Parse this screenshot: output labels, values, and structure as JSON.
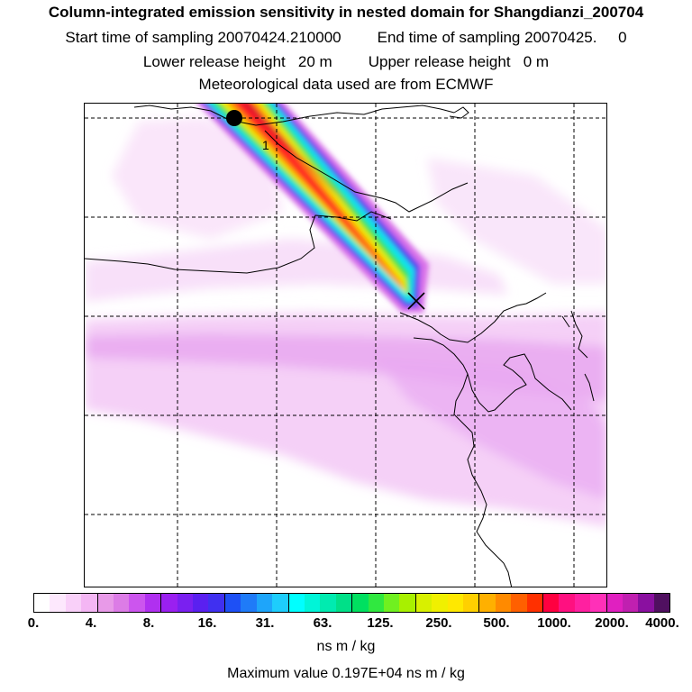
{
  "title": {
    "line1": "Column-integrated emission sensitivity in nested domain for Shangdianzi_200704",
    "start_label": "Start time of sampling 20070424.210000",
    "end_label": "End time of sampling 20070425.",
    "end_suffix": "0",
    "lower_label": "Lower release height",
    "lower_value": "20 m",
    "upper_label": "Upper release height",
    "upper_value": "0 m",
    "met": "Meteorological data used are from ECMWF"
  },
  "map": {
    "trajectory_label": "1",
    "station_marker": "x-marker",
    "start_marker": "filled-circle"
  },
  "colorbar": {
    "tick_labels": [
      "0.",
      "4.",
      "8.",
      "16.",
      "31.",
      "63.",
      "125.",
      "250.",
      "500.",
      "1000.",
      "2000.",
      "4000."
    ],
    "units": "ns m / kg",
    "segments_per_interval": 4,
    "colors": [
      "#ffffff",
      "#fde8fd",
      "#f9d0f9",
      "#f4b6f4",
      "#e89ae8",
      "#dc7ce6",
      "#cc55ee",
      "#b030f0",
      "#9a20f0",
      "#7a20f0",
      "#5a20f0",
      "#4030f0",
      "#1e50f5",
      "#1f7bf8",
      "#1ea5fa",
      "#1ecdfc",
      "#00ffff",
      "#00f5d8",
      "#00ebb0",
      "#00e088",
      "#00e060",
      "#30e840",
      "#70f020",
      "#a8f000",
      "#d8f000",
      "#f0f000",
      "#ffe800",
      "#ffd000",
      "#ffb000",
      "#ff8a00",
      "#ff6000",
      "#ff3000",
      "#ff0040",
      "#ff1080",
      "#ff20a0",
      "#ff30b8",
      "#e020c0",
      "#c020b0",
      "#8a10a0",
      "#501060"
    ]
  },
  "max_value_text": "Maximum value  0.197E+04 ns m / kg"
}
